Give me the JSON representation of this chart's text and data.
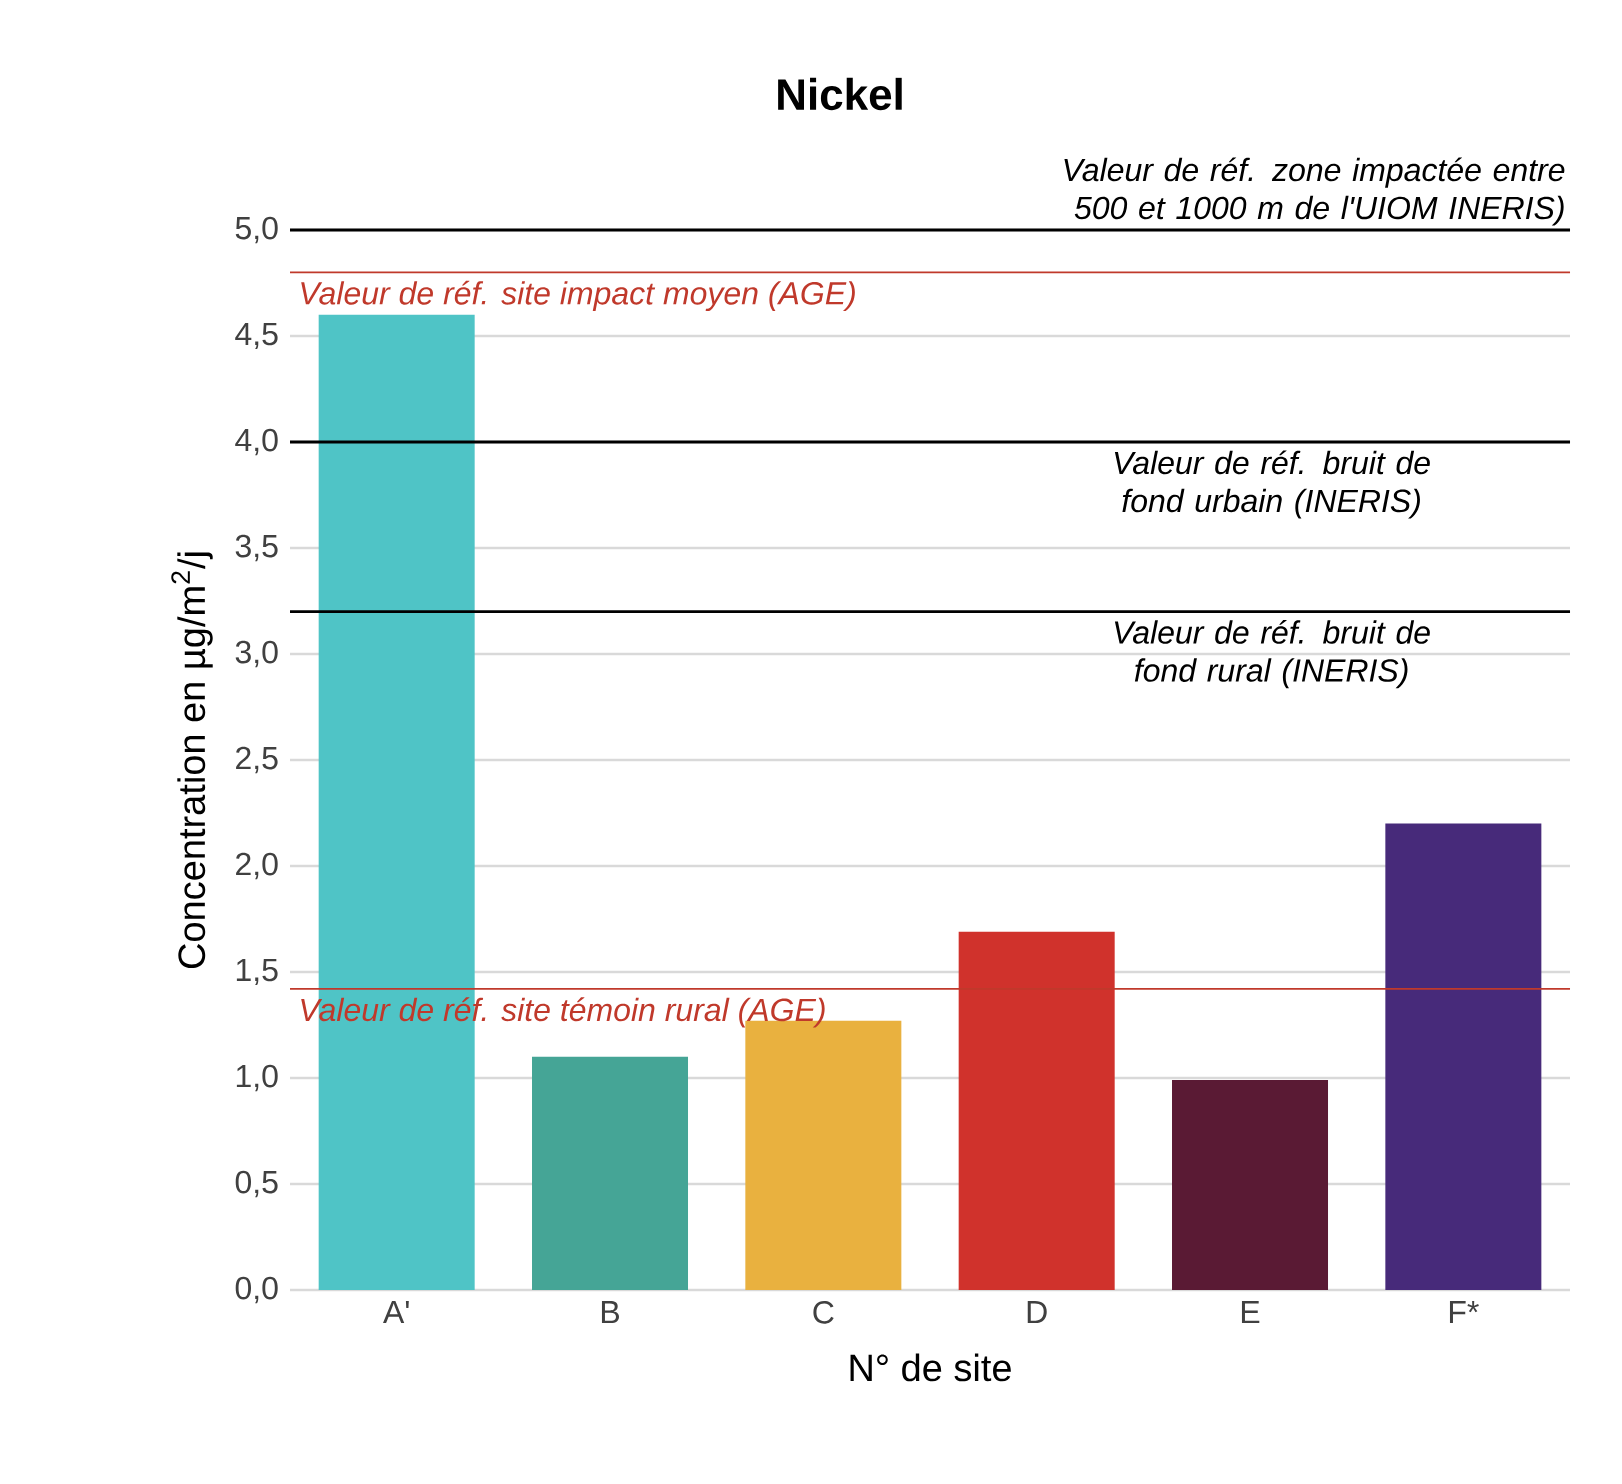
{
  "chart_data": {
    "type": "bar",
    "title": "Nickel",
    "xlabel": "N° de site",
    "ylabel": "Concentration en µg/m$^{2}$/j",
    "categories": [
      "A'",
      "B",
      "C",
      "D",
      "E",
      "F*"
    ],
    "values": [
      4.6,
      1.1,
      1.27,
      1.69,
      0.99,
      2.2
    ],
    "colors": [
      "#4fc4c6",
      "#45a596",
      "#e9b13f",
      "#d0322c",
      "#5a1a34",
      "#472a7a"
    ],
    "ylim": [
      0,
      5
    ],
    "yticks": [
      {
        "value": 0,
        "label": "0,0"
      },
      {
        "value": 0.5,
        "label": "0,5"
      },
      {
        "value": 1,
        "label": "1,0"
      },
      {
        "value": 1.5,
        "label": "1,5"
      },
      {
        "value": 2,
        "label": "2,0"
      },
      {
        "value": 2.5,
        "label": "2,5"
      },
      {
        "value": 3,
        "label": "3,0"
      },
      {
        "value": 3.5,
        "label": "3,5"
      },
      {
        "value": 4,
        "label": "4,0"
      },
      {
        "value": 4.5,
        "label": "4,5"
      },
      {
        "value": 5,
        "label": "5,0"
      }
    ],
    "grid": "y",
    "ref_lines": [
      {
        "axis": "y",
        "value": 5,
        "label": "Valeur de réf. zone impactée entre 500 et 1000 m de l'UIOM INERIS)",
        "color": "#000000"
      },
      {
        "axis": "y",
        "value": 4.8,
        "label": "Valeur de réf. site impact moyen (AGE)",
        "color": "#c0392b"
      },
      {
        "axis": "y",
        "value": 4,
        "label": "Valeur de réf. bruit de fond urbain (INERIS)",
        "color": "#000000"
      },
      {
        "axis": "y",
        "value": 3.2,
        "label": "Valeur de réf. bruit de fond rural (INERIS)",
        "color": "#000000"
      },
      {
        "axis": "y",
        "value": 1.42,
        "label": "Valeur de réf. site témoin rural (AGE)",
        "color": "#c0392b"
      }
    ]
  }
}
